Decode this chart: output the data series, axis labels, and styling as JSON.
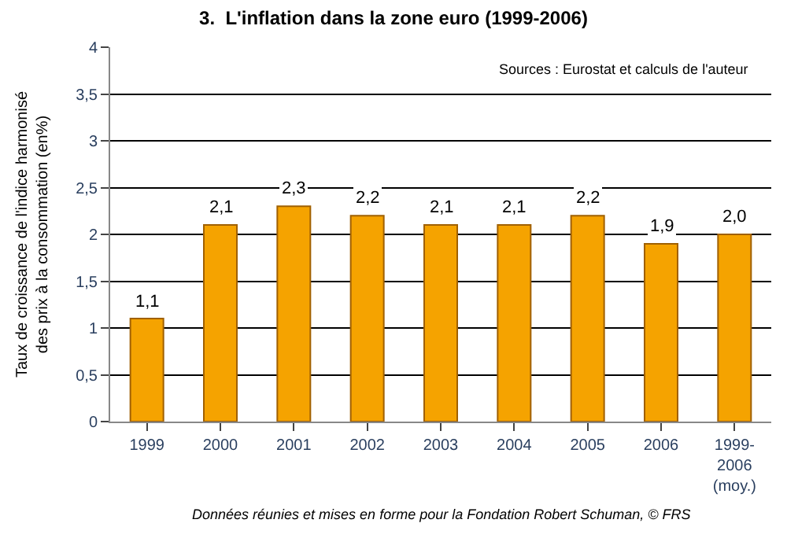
{
  "chart_data": {
    "type": "bar",
    "title": "3.  L'inflation dans la zone euro (1999-2006)",
    "ylabel": "Taux de croissance de l'indice harmonisé\ndes prix à la consommation (en%)",
    "categories": [
      "1999",
      "2000",
      "2001",
      "2002",
      "2003",
      "2004",
      "2005",
      "2006",
      "1999-\n2006\n(moy.)"
    ],
    "values": [
      1.1,
      2.1,
      2.3,
      2.2,
      2.1,
      2.1,
      2.2,
      1.9,
      2.0
    ],
    "value_labels": [
      "1,1",
      "2,1",
      "2,3",
      "2,2",
      "2,1",
      "2,1",
      "2,2",
      "1,9",
      "2,0"
    ],
    "color": "#f5a300",
    "ylim": [
      0,
      4
    ],
    "yticks": [
      0,
      {
        "value": 0.5,
        "label": "0,5"
      },
      1,
      {
        "value": 1.5,
        "label": "1,5"
      },
      2,
      {
        "value": 2.5,
        "label": "2,5"
      },
      3,
      {
        "value": 3.5,
        "label": "3,5"
      },
      4
    ],
    "grid": "y",
    "annotations": [
      "Sources : Eurostat et calculs de l'auteur",
      "Données réunies et mises en forme pour la Fondation Robert Schuman, © FRS"
    ]
  }
}
